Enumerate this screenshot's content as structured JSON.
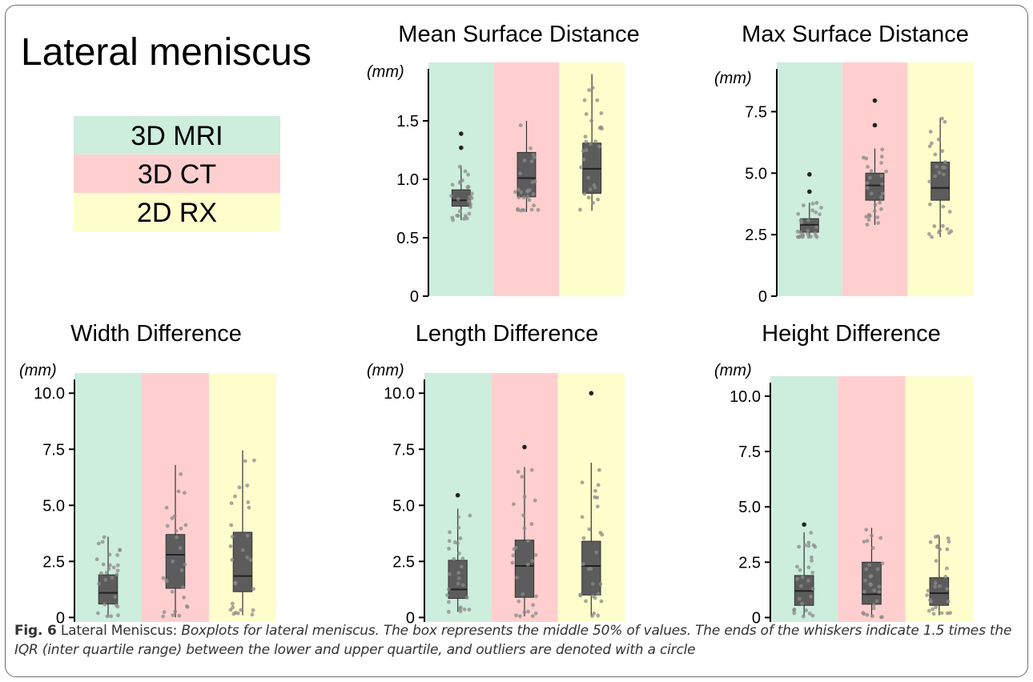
{
  "figure_title": "Lateral meniscus",
  "legend": [
    {
      "label": "3D MRI",
      "color": "#cdeddd"
    },
    {
      "label": "3D CT",
      "color": "#ffcfcf"
    },
    {
      "label": "2D RX",
      "color": "#fefdcc"
    }
  ],
  "caption": {
    "label": "Fig. 6",
    "plain": "Lateral Meniscus: ",
    "italic": "Boxplots for lateral meniscus. The box represents the middle 50% of values. The ends of the whiskers indicate 1.5 times the IQR (inter quartile range) between the lower and upper quartile, and outliers are denoted with a circle"
  },
  "chart_data": [
    {
      "type": "box",
      "title": "Mean Surface Distance",
      "ylabel": "(mm)",
      "ylim": [
        0,
        2.0
      ],
      "yticks": [
        0,
        0.5,
        1.0,
        1.5
      ],
      "ytick_labels": [
        "0",
        "0.5",
        "1.0",
        "1.5"
      ],
      "categories": [
        "3D MRI",
        "3D CT",
        "2D RX"
      ],
      "boxes": [
        {
          "min": 0.65,
          "q1": 0.77,
          "median": 0.82,
          "q3": 0.91,
          "max": 1.12,
          "outliers": [
            1.27,
            1.39
          ]
        },
        {
          "min": 0.72,
          "q1": 0.85,
          "median": 1.01,
          "q3": 1.23,
          "max": 1.5,
          "outliers": []
        },
        {
          "min": 0.73,
          "q1": 0.88,
          "median": 1.09,
          "q3": 1.31,
          "max": 1.9,
          "outliers": []
        }
      ]
    },
    {
      "type": "box",
      "title": "Max Surface Distance",
      "ylabel": "(mm)",
      "ylim": [
        0,
        9.5
      ],
      "yticks": [
        0,
        2.5,
        5.0,
        7.5
      ],
      "ytick_labels": [
        "0",
        "2.5",
        "5.0",
        "7.5"
      ],
      "categories": [
        "3D MRI",
        "3D CT",
        "2D RX"
      ],
      "boxes": [
        {
          "min": 2.4,
          "q1": 2.6,
          "median": 2.9,
          "q3": 3.15,
          "max": 3.8,
          "outliers": [
            4.25,
            4.95
          ]
        },
        {
          "min": 2.9,
          "q1": 3.9,
          "median": 4.5,
          "q3": 5.0,
          "max": 6.0,
          "outliers": [
            6.95,
            7.95
          ]
        },
        {
          "min": 2.4,
          "q1": 3.9,
          "median": 4.4,
          "q3": 5.45,
          "max": 7.25,
          "outliers": []
        }
      ]
    },
    {
      "type": "box",
      "title": "Width Difference",
      "ylabel": "(mm)",
      "ylim": [
        -0.2,
        10.9
      ],
      "yticks": [
        0,
        2.5,
        5.0,
        7.5,
        10.0
      ],
      "ytick_labels": [
        "0",
        "2.5",
        "5.0",
        "7.5",
        "10.0"
      ],
      "categories": [
        "3D MRI",
        "3D CT",
        "2D RX"
      ],
      "boxes": [
        {
          "min": 0.05,
          "q1": 0.6,
          "median": 1.1,
          "q3": 1.9,
          "max": 3.6,
          "outliers": []
        },
        {
          "min": 0.0,
          "q1": 1.3,
          "median": 2.8,
          "q3": 3.7,
          "max": 6.8,
          "outliers": []
        },
        {
          "min": 0.1,
          "q1": 1.15,
          "median": 1.85,
          "q3": 3.8,
          "max": 7.45,
          "outliers": []
        }
      ]
    },
    {
      "type": "box",
      "title": "Length Difference",
      "ylabel": "(mm)",
      "ylim": [
        -0.2,
        10.9
      ],
      "yticks": [
        0,
        2.5,
        5.0,
        7.5,
        10.0
      ],
      "ytick_labels": [
        "0",
        "2.5",
        "5.0",
        "7.5",
        "10.0"
      ],
      "categories": [
        "3D MRI",
        "3D CT",
        "2D RX"
      ],
      "boxes": [
        {
          "min": 0.25,
          "q1": 0.85,
          "median": 1.25,
          "q3": 2.55,
          "max": 4.85,
          "outliers": [
            5.45
          ]
        },
        {
          "min": 0.05,
          "q1": 0.9,
          "median": 2.3,
          "q3": 3.45,
          "max": 6.7,
          "outliers": [
            7.6
          ]
        },
        {
          "min": 0.05,
          "q1": 1.0,
          "median": 2.3,
          "q3": 3.4,
          "max": 6.9,
          "outliers": [
            10.0
          ]
        }
      ]
    },
    {
      "type": "box",
      "title": "Height Difference",
      "ylabel": "(mm)",
      "ylim": [
        -0.2,
        10.9
      ],
      "yticks": [
        0,
        2.5,
        5.0,
        7.5,
        10.0
      ],
      "ytick_labels": [
        "0",
        "2.5",
        "5.0",
        "7.5",
        "10.0"
      ],
      "categories": [
        "3D MRI",
        "3D CT",
        "2D RX"
      ],
      "boxes": [
        {
          "min": 0.05,
          "q1": 0.55,
          "median": 1.2,
          "q3": 1.9,
          "max": 3.85,
          "outliers": [
            4.2
          ]
        },
        {
          "min": 0.0,
          "q1": 0.6,
          "median": 1.05,
          "q3": 2.5,
          "max": 4.05,
          "outliers": []
        },
        {
          "min": 0.1,
          "q1": 0.55,
          "median": 1.1,
          "q3": 1.8,
          "max": 3.7,
          "outliers": []
        }
      ]
    }
  ]
}
